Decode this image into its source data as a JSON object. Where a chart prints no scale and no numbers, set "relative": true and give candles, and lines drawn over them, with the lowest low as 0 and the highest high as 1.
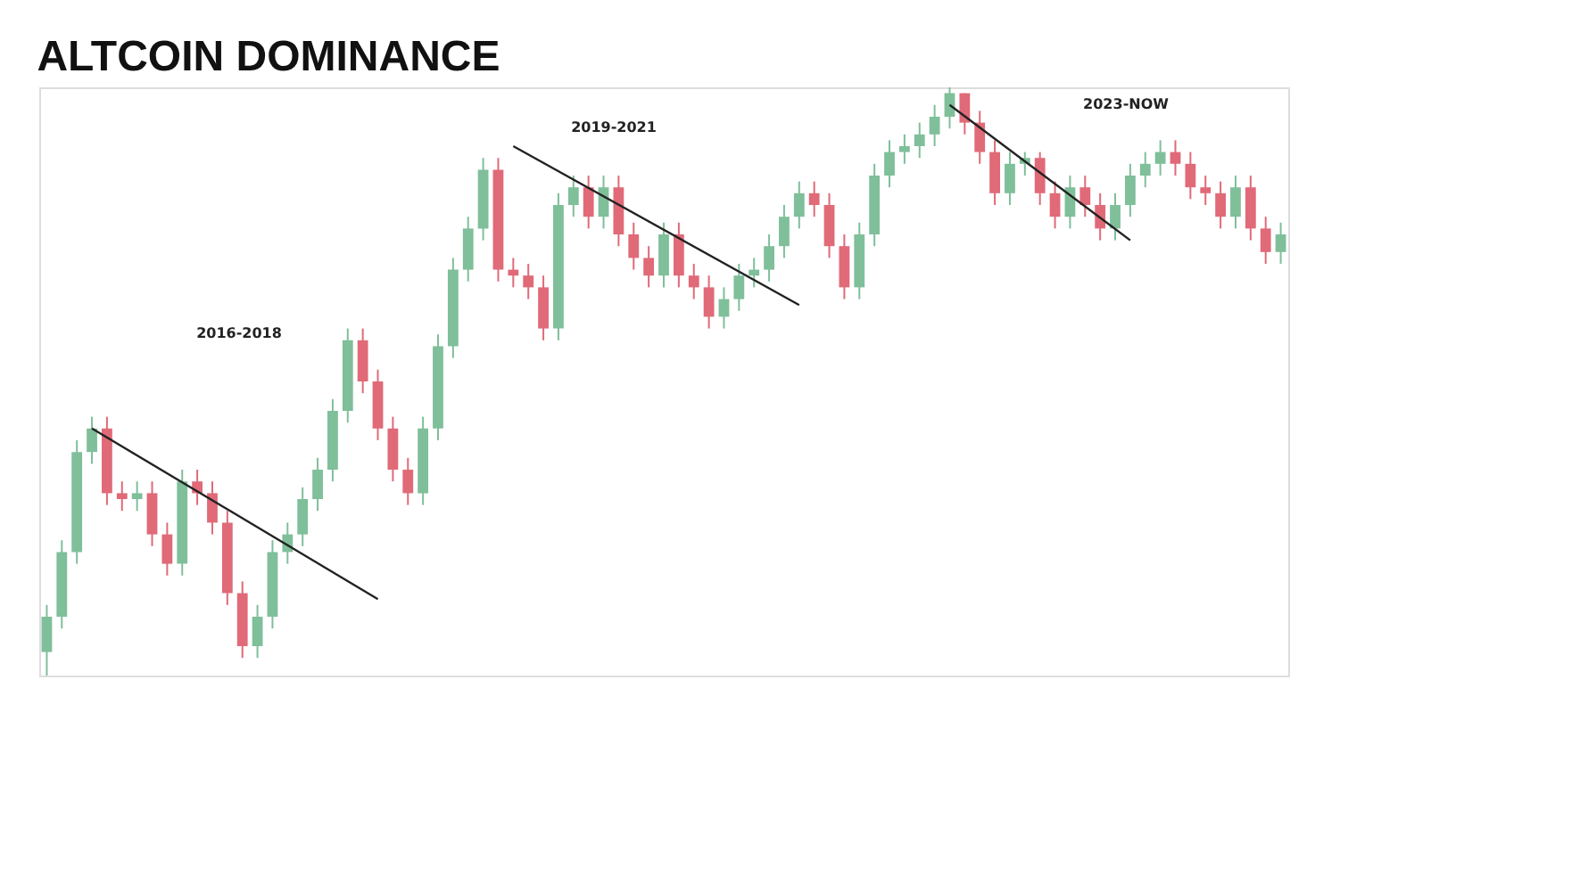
{
  "chart_data": {
    "type": "candlestick",
    "title": "ALTCOIN DOMINANCE",
    "relative": true,
    "categories": [
      null,
      null,
      null,
      null,
      null,
      null,
      null,
      null,
      null,
      null,
      null,
      null,
      null,
      null,
      null,
      null,
      null,
      null,
      null,
      null,
      null,
      null,
      null,
      null,
      null,
      null,
      null,
      null,
      null,
      null,
      null,
      null,
      null,
      null,
      null,
      null,
      null,
      null,
      null,
      null,
      null,
      null,
      null,
      null,
      null,
      null,
      null,
      null,
      null,
      null,
      null,
      null,
      null,
      null,
      null,
      null,
      null,
      null,
      null,
      null,
      null,
      null,
      null,
      null,
      null,
      null,
      null,
      null,
      null,
      null,
      null,
      null,
      null,
      null,
      null,
      null,
      null,
      null,
      null,
      null,
      null,
      null,
      null
    ],
    "ohlc": [
      [
        0.04,
        0.12,
        0.0,
        0.1
      ],
      [
        0.1,
        0.23,
        0.08,
        0.21
      ],
      [
        0.21,
        0.4,
        0.19,
        0.38
      ],
      [
        0.38,
        0.44,
        0.36,
        0.42
      ],
      [
        0.42,
        0.44,
        0.29,
        0.31
      ],
      [
        0.31,
        0.33,
        0.28,
        0.3
      ],
      [
        0.3,
        0.33,
        0.28,
        0.31
      ],
      [
        0.31,
        0.33,
        0.22,
        0.24
      ],
      [
        0.24,
        0.26,
        0.17,
        0.19
      ],
      [
        0.19,
        0.35,
        0.17,
        0.33
      ],
      [
        0.33,
        0.35,
        0.29,
        0.31
      ],
      [
        0.31,
        0.33,
        0.24,
        0.26
      ],
      [
        0.26,
        0.28,
        0.12,
        0.14
      ],
      [
        0.14,
        0.16,
        0.03,
        0.05
      ],
      [
        0.05,
        0.12,
        0.03,
        0.1
      ],
      [
        0.1,
        0.23,
        0.08,
        0.21
      ],
      [
        0.21,
        0.26,
        0.19,
        0.24
      ],
      [
        0.24,
        0.32,
        0.22,
        0.3
      ],
      [
        0.3,
        0.37,
        0.28,
        0.35
      ],
      [
        0.35,
        0.47,
        0.33,
        0.45
      ],
      [
        0.45,
        0.59,
        0.43,
        0.57
      ],
      [
        0.57,
        0.59,
        0.48,
        0.5
      ],
      [
        0.5,
        0.52,
        0.4,
        0.42
      ],
      [
        0.42,
        0.44,
        0.33,
        0.35
      ],
      [
        0.35,
        0.37,
        0.29,
        0.31
      ],
      [
        0.31,
        0.44,
        0.29,
        0.42
      ],
      [
        0.42,
        0.58,
        0.4,
        0.56
      ],
      [
        0.56,
        0.71,
        0.54,
        0.69
      ],
      [
        0.69,
        0.78,
        0.67,
        0.76
      ],
      [
        0.76,
        0.88,
        0.74,
        0.86
      ],
      [
        0.86,
        0.88,
        0.67,
        0.69
      ],
      [
        0.69,
        0.71,
        0.66,
        0.68
      ],
      [
        0.68,
        0.7,
        0.64,
        0.66
      ],
      [
        0.66,
        0.68,
        0.57,
        0.59
      ],
      [
        0.59,
        0.82,
        0.57,
        0.8
      ],
      [
        0.8,
        0.85,
        0.78,
        0.83
      ],
      [
        0.83,
        0.85,
        0.76,
        0.78
      ],
      [
        0.78,
        0.85,
        0.76,
        0.83
      ],
      [
        0.83,
        0.85,
        0.73,
        0.75
      ],
      [
        0.75,
        0.77,
        0.69,
        0.71
      ],
      [
        0.71,
        0.73,
        0.66,
        0.68
      ],
      [
        0.68,
        0.77,
        0.66,
        0.75
      ],
      [
        0.75,
        0.77,
        0.66,
        0.68
      ],
      [
        0.68,
        0.7,
        0.64,
        0.66
      ],
      [
        0.66,
        0.68,
        0.59,
        0.61
      ],
      [
        0.61,
        0.66,
        0.59,
        0.64
      ],
      [
        0.64,
        0.7,
        0.62,
        0.68
      ],
      [
        0.68,
        0.71,
        0.66,
        0.69
      ],
      [
        0.69,
        0.75,
        0.67,
        0.73
      ],
      [
        0.73,
        0.8,
        0.71,
        0.78
      ],
      [
        0.78,
        0.84,
        0.76,
        0.82
      ],
      [
        0.82,
        0.84,
        0.78,
        0.8
      ],
      [
        0.8,
        0.82,
        0.71,
        0.73
      ],
      [
        0.73,
        0.75,
        0.64,
        0.66
      ],
      [
        0.66,
        0.77,
        0.64,
        0.75
      ],
      [
        0.75,
        0.87,
        0.73,
        0.85
      ],
      [
        0.85,
        0.91,
        0.83,
        0.89
      ],
      [
        0.89,
        0.92,
        0.87,
        0.9
      ],
      [
        0.9,
        0.94,
        0.88,
        0.92
      ],
      [
        0.92,
        0.97,
        0.9,
        0.95
      ],
      [
        0.95,
        1.0,
        0.93,
        0.99
      ],
      [
        0.99,
        0.99,
        0.92,
        0.94
      ],
      [
        0.94,
        0.96,
        0.87,
        0.89
      ],
      [
        0.89,
        0.91,
        0.8,
        0.82
      ],
      [
        0.82,
        0.89,
        0.8,
        0.87
      ],
      [
        0.87,
        0.89,
        0.85,
        0.88
      ],
      [
        0.88,
        0.89,
        0.8,
        0.82
      ],
      [
        0.82,
        0.84,
        0.76,
        0.78
      ],
      [
        0.78,
        0.85,
        0.76,
        0.83
      ],
      [
        0.83,
        0.85,
        0.78,
        0.8
      ],
      [
        0.8,
        0.82,
        0.74,
        0.76
      ],
      [
        0.76,
        0.82,
        0.74,
        0.8
      ],
      [
        0.8,
        0.87,
        0.78,
        0.85
      ],
      [
        0.85,
        0.89,
        0.83,
        0.87
      ],
      [
        0.87,
        0.91,
        0.85,
        0.89
      ],
      [
        0.89,
        0.91,
        0.85,
        0.87
      ],
      [
        0.87,
        0.89,
        0.81,
        0.83
      ],
      [
        0.83,
        0.85,
        0.8,
        0.82
      ],
      [
        0.82,
        0.84,
        0.76,
        0.78
      ],
      [
        0.78,
        0.85,
        0.76,
        0.83
      ],
      [
        0.83,
        0.85,
        0.74,
        0.76
      ],
      [
        0.76,
        0.78,
        0.7,
        0.72
      ],
      [
        0.72,
        0.77,
        0.7,
        0.75
      ]
    ],
    "series": [
      {
        "type": "line",
        "color": "#222222",
        "values": [
          null,
          null,
          null,
          0.42,
          null,
          null,
          null,
          null,
          null,
          null,
          null,
          null,
          null,
          null,
          null,
          null,
          null,
          null,
          null,
          null,
          null,
          null,
          0.13,
          null,
          null,
          null,
          null,
          null,
          null,
          null,
          null,
          null,
          null,
          null,
          null,
          null,
          null,
          null,
          null,
          null,
          null,
          null,
          null,
          null,
          null,
          null,
          null,
          null,
          null,
          null,
          null,
          null,
          null,
          null,
          null,
          null,
          null,
          null,
          null,
          null,
          null,
          null,
          null,
          null,
          null,
          null,
          null,
          null,
          null,
          null,
          null,
          null,
          null,
          null,
          null,
          null,
          null,
          null,
          null,
          null,
          null,
          null,
          null
        ]
      },
      {
        "type": "line",
        "color": "#222222",
        "values": [
          null,
          null,
          null,
          null,
          null,
          null,
          null,
          null,
          null,
          null,
          null,
          null,
          null,
          null,
          null,
          null,
          null,
          null,
          null,
          null,
          null,
          null,
          null,
          null,
          null,
          null,
          null,
          null,
          null,
          null,
          null,
          0.9,
          null,
          null,
          null,
          null,
          null,
          null,
          null,
          null,
          null,
          null,
          null,
          null,
          null,
          null,
          null,
          null,
          null,
          null,
          0.63,
          null,
          null,
          null,
          null,
          null,
          null,
          null,
          null,
          null,
          null,
          null,
          null,
          null,
          null,
          null,
          null,
          null,
          null,
          null,
          null,
          null,
          null,
          null,
          null,
          null,
          null,
          null,
          null,
          null,
          null,
          null,
          null
        ]
      },
      {
        "type": "line",
        "color": "#222222",
        "values": [
          null,
          null,
          null,
          null,
          null,
          null,
          null,
          null,
          null,
          null,
          null,
          null,
          null,
          null,
          null,
          null,
          null,
          null,
          null,
          null,
          null,
          null,
          null,
          null,
          null,
          null,
          null,
          null,
          null,
          null,
          null,
          null,
          null,
          null,
          null,
          null,
          null,
          null,
          null,
          null,
          null,
          null,
          null,
          null,
          null,
          null,
          null,
          null,
          null,
          null,
          null,
          null,
          null,
          null,
          null,
          null,
          null,
          null,
          null,
          null,
          0.97,
          null,
          null,
          null,
          null,
          null,
          null,
          null,
          null,
          null,
          null,
          null,
          0.74,
          null,
          null,
          null,
          null,
          null,
          null,
          null,
          null,
          null,
          null
        ]
      }
    ],
    "annotations": [
      "2016-2018",
      "2019-2021",
      "2023-NOW"
    ]
  }
}
